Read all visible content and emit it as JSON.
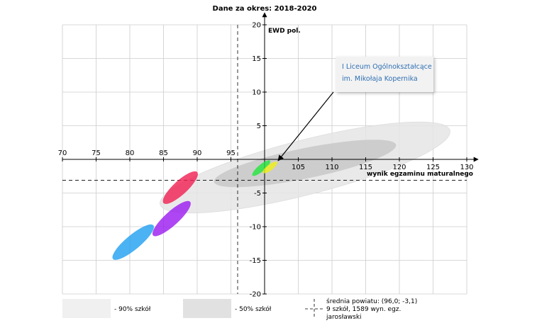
{
  "chart_data": {
    "type": "scatter",
    "title": "Dane za okres: 2018-2020",
    "xlabel": "wynik egzaminu maturalnego",
    "ylabel": "EWD pol.",
    "xlim": [
      70,
      130
    ],
    "ylim": [
      -20,
      20
    ],
    "x_ticks": [
      "70",
      "75",
      "80",
      "85",
      "90",
      "95",
      "105",
      "110",
      "115",
      "120",
      "125",
      "130"
    ],
    "y_ticks": [
      "20",
      "15",
      "10",
      "5",
      "-5",
      "-10",
      "-15",
      "-20"
    ],
    "grid": true,
    "reference_point": {
      "x": 96.0,
      "y": -3.1
    },
    "bands": [
      {
        "name": "90% szkół",
        "color": "#e6e6e6",
        "cx": 106.0,
        "cy": -1.2,
        "p1": [
          84.5,
          -6.5
        ],
        "p2": [
          127.5,
          4.5
        ],
        "half_minor": 4.2
      },
      {
        "name": "50% szkół",
        "color": "#c8c8c8",
        "cx": 106.0,
        "cy": -0.6,
        "p1": [
          92.5,
          -3.3
        ],
        "p2": [
          119.5,
          2.2
        ],
        "half_minor": 2.3
      }
    ],
    "schools": [
      {
        "color": "#1e9ff0",
        "cx": 80.5,
        "cy": -12.3,
        "p1": [
          77.5,
          -14.8
        ],
        "p2": [
          83.5,
          -9.8
        ],
        "half_minor": 1.4
      },
      {
        "color": "#9a19f0",
        "cx": 86.2,
        "cy": -8.8,
        "p1": [
          83.5,
          -11.3
        ],
        "p2": [
          89.0,
          -6.3
        ],
        "half_minor": 1.4
      },
      {
        "color": "#f01e50",
        "cx": 87.5,
        "cy": -4.2,
        "p1": [
          85.0,
          -6.5
        ],
        "p2": [
          90.0,
          -1.9
        ],
        "half_minor": 1.4
      },
      {
        "color": "#23e63c",
        "cx": 99.5,
        "cy": -1.3,
        "p1": [
          98.2,
          -2.4
        ],
        "p2": [
          100.8,
          -0.2
        ],
        "half_minor": 0.65
      },
      {
        "color": "#f0f014",
        "cx": 100.8,
        "cy": -1.2,
        "p1": [
          99.8,
          -2.0
        ],
        "p2": [
          101.9,
          -0.4
        ],
        "half_minor": 0.55
      }
    ],
    "annotation": {
      "lines": [
        "I Liceum Ogólnokształcące",
        "im. Mikołaja Kopernika"
      ],
      "target": {
        "x": 102.0,
        "y": -0.2
      }
    },
    "legend": {
      "band90_label": "- 90% szkół",
      "band50_label": "- 50% szkół",
      "ref_lines": [
        "średnia powiatu: (96,0; -3,1)",
        "9 szkół, 1589 wyn. egz.",
        "jarosławski"
      ]
    }
  }
}
